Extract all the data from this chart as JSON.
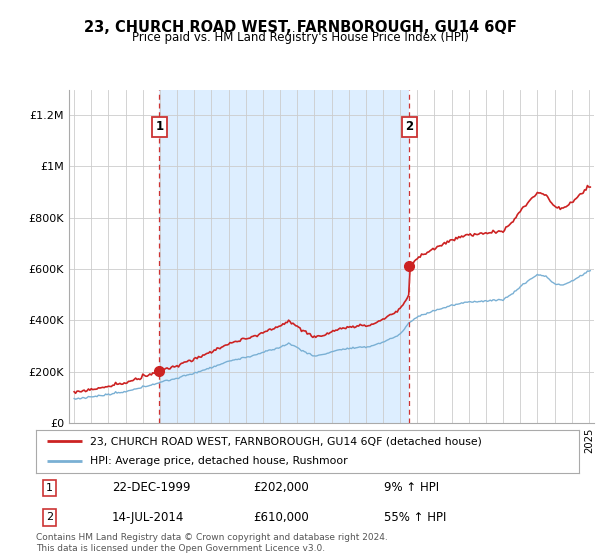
{
  "title": "23, CHURCH ROAD WEST, FARNBOROUGH, GU14 6QF",
  "subtitle": "Price paid vs. HM Land Registry's House Price Index (HPI)",
  "legend_line1": "23, CHURCH ROAD WEST, FARNBOROUGH, GU14 6QF (detached house)",
  "legend_line2": "HPI: Average price, detached house, Rushmoor",
  "sale1_date": "22-DEC-1999",
  "sale1_price": "£202,000",
  "sale1_hpi": "9% ↑ HPI",
  "sale2_date": "14-JUL-2014",
  "sale2_price": "£610,000",
  "sale2_hpi": "55% ↑ HPI",
  "footer": "Contains HM Land Registry data © Crown copyright and database right 2024.\nThis data is licensed under the Open Government Licence v3.0.",
  "sale1_year": 1999.97,
  "sale2_year": 2014.54,
  "sale1_value": 202000,
  "sale2_value": 610000,
  "hpi_color": "#7ab0d4",
  "price_color": "#cc2222",
  "dashed_color": "#cc3333",
  "shade_color": "#ddeeff",
  "background_color": "#ffffff",
  "grid_color": "#cccccc",
  "ylim_max": 1300000,
  "xlim_start": 1994.7,
  "xlim_end": 2025.3,
  "yticks": [
    0,
    200000,
    400000,
    600000,
    800000,
    1000000,
    1200000
  ],
  "ytick_labels": [
    "£0",
    "£200K",
    "£400K",
    "£600K",
    "£800K",
    "£1M",
    "£1.2M"
  ]
}
